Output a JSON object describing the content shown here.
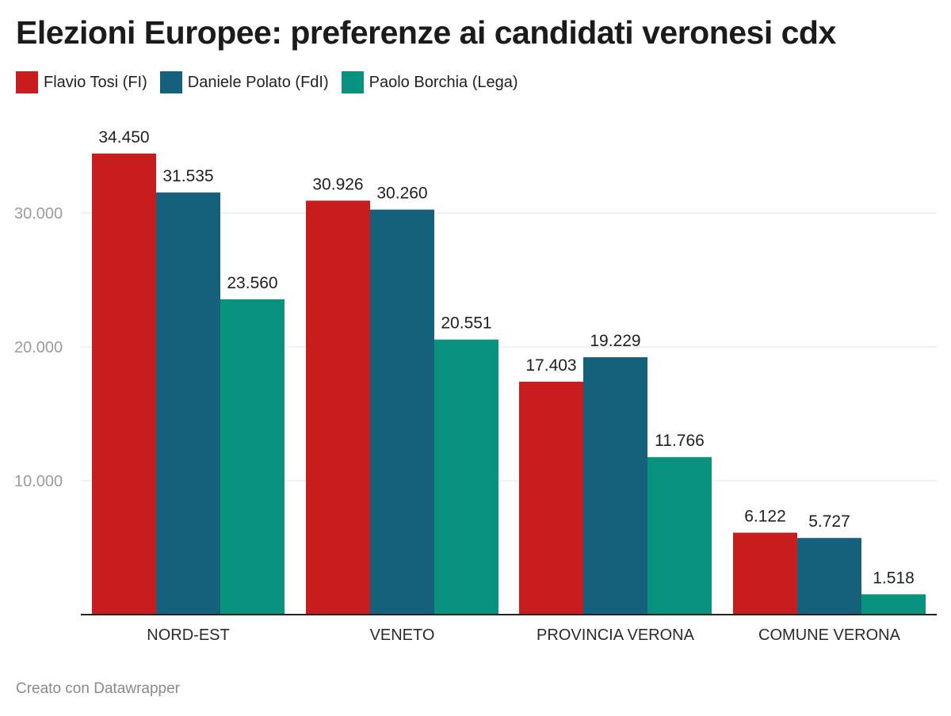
{
  "title": "Elezioni Europee: preferenze ai candidati veronesi cdx",
  "footer": "Creato con Datawrapper",
  "colors": {
    "Flavio Tosi (FI)": "#c71e1d",
    "Daniele Polato (FdI)": "#15607a",
    "Paolo Borchia (Lega)": "#09937e"
  },
  "chart_data": {
    "type": "bar",
    "title": "Elezioni Europee: preferenze ai candidati veronesi cdx",
    "xlabel": "",
    "ylabel": "",
    "categories": [
      "NORD-EST",
      "VENETO",
      "PROVINCIA VERONA",
      "COMUNE VERONA"
    ],
    "series": [
      {
        "name": "Flavio Tosi (FI)",
        "values": [
          34450,
          30926,
          17403,
          6122
        ],
        "labels": [
          "34.450",
          "30.926",
          "17.403",
          "6.122"
        ]
      },
      {
        "name": "Daniele Polato (FdI)",
        "values": [
          31535,
          30260,
          19229,
          5727
        ],
        "labels": [
          "31.535",
          "30.260",
          "19.229",
          "5.727"
        ]
      },
      {
        "name": "Paolo Borchia (Lega)",
        "values": [
          23560,
          20551,
          11766,
          1518
        ],
        "labels": [
          "23.560",
          "20.551",
          "11.766",
          "1.518"
        ]
      }
    ],
    "yticks": [
      10000,
      20000,
      30000
    ],
    "ytick_labels": [
      "10.000",
      "20.000",
      "30.000"
    ],
    "ylim": [
      0,
      36000
    ],
    "grid": true,
    "legend": "top-left"
  }
}
